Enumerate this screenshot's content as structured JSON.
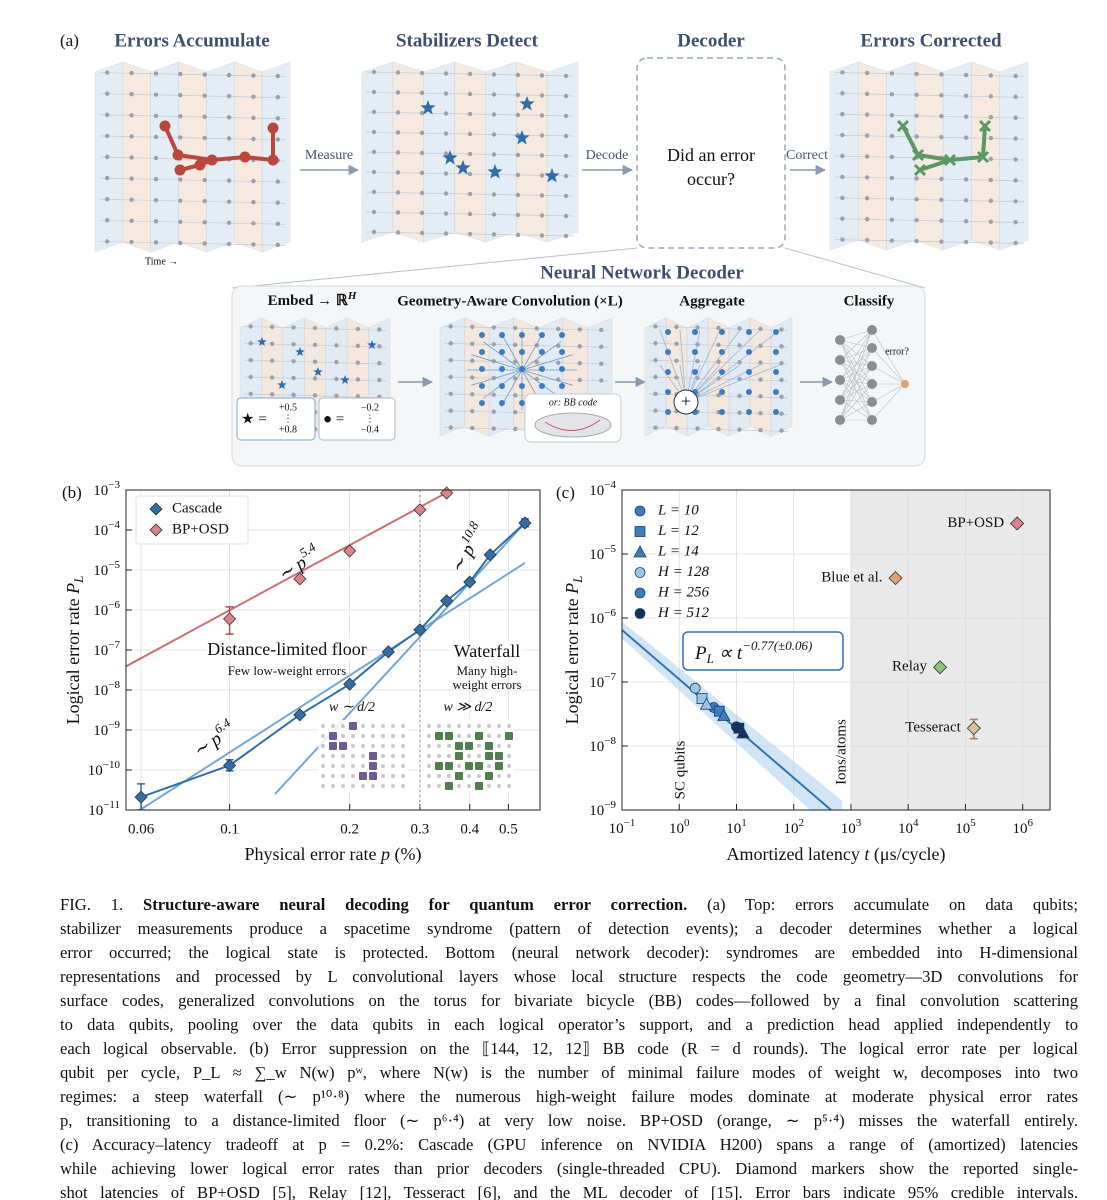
{
  "panel_a": {
    "label": "(a)",
    "stages": [
      "Errors Accumulate",
      "Stabilizers Detect",
      "Decoder",
      "Errors Corrected"
    ],
    "arrows": [
      "Measure",
      "Decode",
      "Correct"
    ],
    "decoder_question": [
      "Did an error",
      "occur?"
    ],
    "time_label": "Time →",
    "nn": {
      "title": "Neural Network Decoder",
      "steps": [
        "Embed → ℝ",
        "Geometry-Aware Convolution (×L)",
        "Aggregate",
        "Classify"
      ],
      "embed_sup": "H",
      "star_symbol": "★ =",
      "star_vector": [
        "+0.5",
        "⋮",
        "+0.8"
      ],
      "dot_symbol": "● =",
      "dot_vector": [
        "−0.2",
        "⋮",
        "−0.4"
      ],
      "alt_code": "or: BB code",
      "sum_symbol": "+",
      "output": "error?"
    }
  },
  "chart_data": [
    {
      "type": "line",
      "label": "(b)",
      "xlabel": [
        "Physical error rate ",
        "p",
        " (%)"
      ],
      "ylabel": [
        "Logical error rate ",
        "P",
        "L"
      ],
      "xscale": "log",
      "yscale": "log",
      "xlim": [
        0.055,
        0.6
      ],
      "ylim": [
        1e-11,
        0.001
      ],
      "xticks": [
        0.06,
        0.1,
        0.2,
        0.3,
        0.4,
        0.5
      ],
      "yticks": [
        {
          "value": 1e-11,
          "label": "10−11"
        },
        {
          "value": 1e-10,
          "label": "10−10"
        },
        {
          "value": 1e-09,
          "label": "10−9"
        },
        {
          "value": 1e-08,
          "label": "10−8"
        },
        {
          "value": 1e-07,
          "label": "10−7"
        },
        {
          "value": 1e-06,
          "label": "10−6"
        },
        {
          "value": 1e-05,
          "label": "10−5"
        },
        {
          "value": 0.0001,
          "label": "10−4"
        },
        {
          "value": 0.001,
          "label": "10−3"
        }
      ],
      "grid": true,
      "legend": "upper left",
      "series": [
        {
          "name": "Cascade",
          "color": "#2f6ea8",
          "marker": "diamond",
          "connect": true,
          "x": [
            0.06,
            0.1,
            0.15,
            0.2,
            0.25,
            0.3,
            0.35,
            0.4,
            0.45,
            0.55
          ],
          "values": [
            2.1e-11,
            1.3e-10,
            2.4e-09,
            1.4e-08,
            9e-08,
            3.2e-07,
            1.7e-06,
            5e-06,
            2.4e-05,
            0.00015
          ],
          "lower": [
            1e-11,
            9.5e-11,
            null,
            null,
            null,
            null,
            null,
            null,
            null,
            0.00012
          ],
          "upper": [
            4.5e-11,
            1.8e-10,
            null,
            null,
            null,
            null,
            null,
            null,
            null,
            0.00019
          ]
        },
        {
          "name": "BP+OSD",
          "color": "#d9848a",
          "marker": "diamond",
          "connect": false,
          "x": [
            0.1,
            0.15,
            0.2,
            0.3,
            0.35
          ],
          "values": [
            6e-07,
            6e-06,
            3e-05,
            0.00032,
            0.00084
          ],
          "lower": [
            2.5e-07,
            null,
            null,
            null,
            null
          ],
          "upper": [
            1.2e-06,
            null,
            null,
            null,
            null
          ]
        }
      ],
      "fits": [
        {
          "label": "∼ p",
          "sup": "5.4",
          "color": "#c4565f",
          "x": [
            0.055,
            0.36
          ],
          "values": [
            3.9e-08,
            0.001
          ]
        },
        {
          "label": "∼ p",
          "sup": "10.8",
          "color": "#5b98cf",
          "x": [
            0.13,
            0.55
          ],
          "values": [
            2.5e-11,
            0.00015
          ]
        },
        {
          "label": "∼ p",
          "sup": "6.4",
          "color": "#5b98cf",
          "x": [
            0.055,
            0.55
          ],
          "values": [
            6e-12,
            1.5e-05
          ]
        }
      ],
      "vline": 0.3,
      "annotations": [
        "Distance-limited floor",
        "Few low-weight errors",
        "Waterfall",
        "Many high-",
        "weight errors",
        "w ∼ d/2",
        "w ≫ d/2"
      ]
    },
    {
      "type": "scatter",
      "label": "(c)",
      "xlabel": [
        "Amortized latency ",
        "t",
        " (μs/cycle)"
      ],
      "ylabel": [
        "Logical error rate ",
        "P",
        "L"
      ],
      "xscale": "log",
      "yscale": "log",
      "xlim": [
        0.1,
        3000000.0
      ],
      "ylim": [
        1e-09,
        0.0001
      ],
      "xticks": [
        {
          "value": 0.1,
          "label": "10−1"
        },
        {
          "value": 1,
          "label": "100"
        },
        {
          "value": 10,
          "label": "101"
        },
        {
          "value": 100,
          "label": "102"
        },
        {
          "value": 1000,
          "label": "103"
        },
        {
          "value": 10000,
          "label": "104"
        },
        {
          "value": 100000,
          "label": "105"
        },
        {
          "value": 1000000,
          "label": "106"
        }
      ],
      "yticks": [
        {
          "value": 1e-09,
          "label": "10−9"
        },
        {
          "value": 1e-08,
          "label": "10−8"
        },
        {
          "value": 1e-07,
          "label": "10−7"
        },
        {
          "value": 1e-06,
          "label": "10−6"
        },
        {
          "value": 1e-05,
          "label": "10−5"
        },
        {
          "value": 0.0001,
          "label": "10−4"
        }
      ],
      "grid": true,
      "legend": "upper left",
      "legend_entries": [
        {
          "name": "L = 10",
          "marker": "circle",
          "color": "#3b7dbf"
        },
        {
          "name": "L = 12",
          "marker": "square",
          "color": "#3b7dbf"
        },
        {
          "name": "L = 14",
          "marker": "triangle",
          "color": "#3b7dbf"
        },
        {
          "name": "H = 128",
          "marker": "circle",
          "color": "#9cc6e8"
        },
        {
          "name": "H = 256",
          "marker": "circle",
          "color": "#3b7dbf"
        },
        {
          "name": "H = 512",
          "marker": "circle",
          "color": "#14315e"
        }
      ],
      "points": {
        "x": [
          1.9,
          4.0,
          10,
          2.5,
          5,
          11,
          3,
          6,
          13
        ],
        "values": [
          8e-08,
          4e-08,
          2e-08,
          5.5e-08,
          3.5e-08,
          1.9e-08,
          4.5e-08,
          3e-08,
          1.6e-08
        ],
        "marker": [
          "circle",
          "circle",
          "circle",
          "square",
          "square",
          "square",
          "triangle",
          "triangle",
          "triangle"
        ],
        "color": [
          "#9cc6e8",
          "#3b7dbf",
          "#14315e",
          "#9cc6e8",
          "#3b7dbf",
          "#14315e",
          "#9cc6e8",
          "#3b7dbf",
          "#14315e"
        ]
      },
      "fit": {
        "x": [
          0.1,
          700
        ],
        "values": [
          6.5e-07,
          7.1e-10
        ],
        "lower": [
          4.8e-07,
          3.5e-10
        ],
        "upper": [
          8.8e-07,
          1.4e-09
        ],
        "color": "#2f74b5",
        "label": [
          "P",
          "L",
          " ∝ t",
          "−0.77(±0.06)"
        ]
      },
      "shaded_from": 1000,
      "regions": [
        "SC qubits",
        "Ions/atoms"
      ],
      "references": [
        {
          "name": "BP+OSD",
          "x": 800000,
          "value": 3e-05,
          "color": "#d9848a",
          "text_color": "#b5535d"
        },
        {
          "name": "Blue et al.",
          "x": 6000,
          "value": 4.2e-06,
          "color": "#e0a070",
          "text_color": "#c07a45"
        },
        {
          "name": "Relay",
          "x": 36000,
          "value": 1.7e-07,
          "color": "#8ac47a",
          "text_color": "#5a9a4a"
        },
        {
          "name": "Tesseract",
          "x": 140000,
          "value": 1.9e-08,
          "lower": 1.3e-08,
          "upper": 2.6e-08,
          "color": "#d8c09a",
          "text_color": "#9a8458"
        }
      ]
    }
  ],
  "caption": {
    "label": "FIG. 1.",
    "title": "Structure-aware neural decoding for quantum error correction.",
    "lines": [
      "(a) Top: errors accumulate on data qubits;",
      "stabilizer measurements produce a spacetime syndrome (pattern of detection events); a decoder determines whether a logical",
      "error occurred; the logical state is protected. Bottom (neural network decoder): syndromes are embedded into H-dimensional",
      "representations and processed by L convolutional layers whose local structure respects the code geometry—3D convolutions for",
      "surface codes, generalized convolutions on the torus for bivariate bicycle (BB) codes—followed by a final convolution scattering",
      "to data qubits, pooling over the data qubits in each logical operator’s support, and a prediction head applied independently to",
      "each logical observable. (b) Error suppression on the ⟦144, 12, 12⟧ BB code (R = d rounds). The logical error rate per logical",
      "qubit per cycle, P_L ≈ ∑_w N(w) pʷ, where N(w) is the number of minimal failure modes of weight w, decomposes into two",
      "regimes: a steep waterfall (∼ p¹⁰·⁸) where the numerous high-weight failure modes dominate at moderate physical error rates",
      "p, transitioning to a distance-limited floor (∼ p⁶·⁴) at very low noise. BP+OSD (orange, ∼ p⁵·⁴) misses the waterfall entirely.",
      "(c) Accuracy–latency tradeoff at p = 0.2%: Cascade (GPU inference on NVIDIA H200) spans a range of (amortized) latencies",
      "while achieving lower logical error rates than prior decoders (single-threaded CPU). Diamond markers show the reported single-",
      "shot latencies of BP+OSD [5], Relay [12], Tesseract [6], and the ML decoder of [15]. Error bars indicate 95% credible intervals."
    ]
  }
}
